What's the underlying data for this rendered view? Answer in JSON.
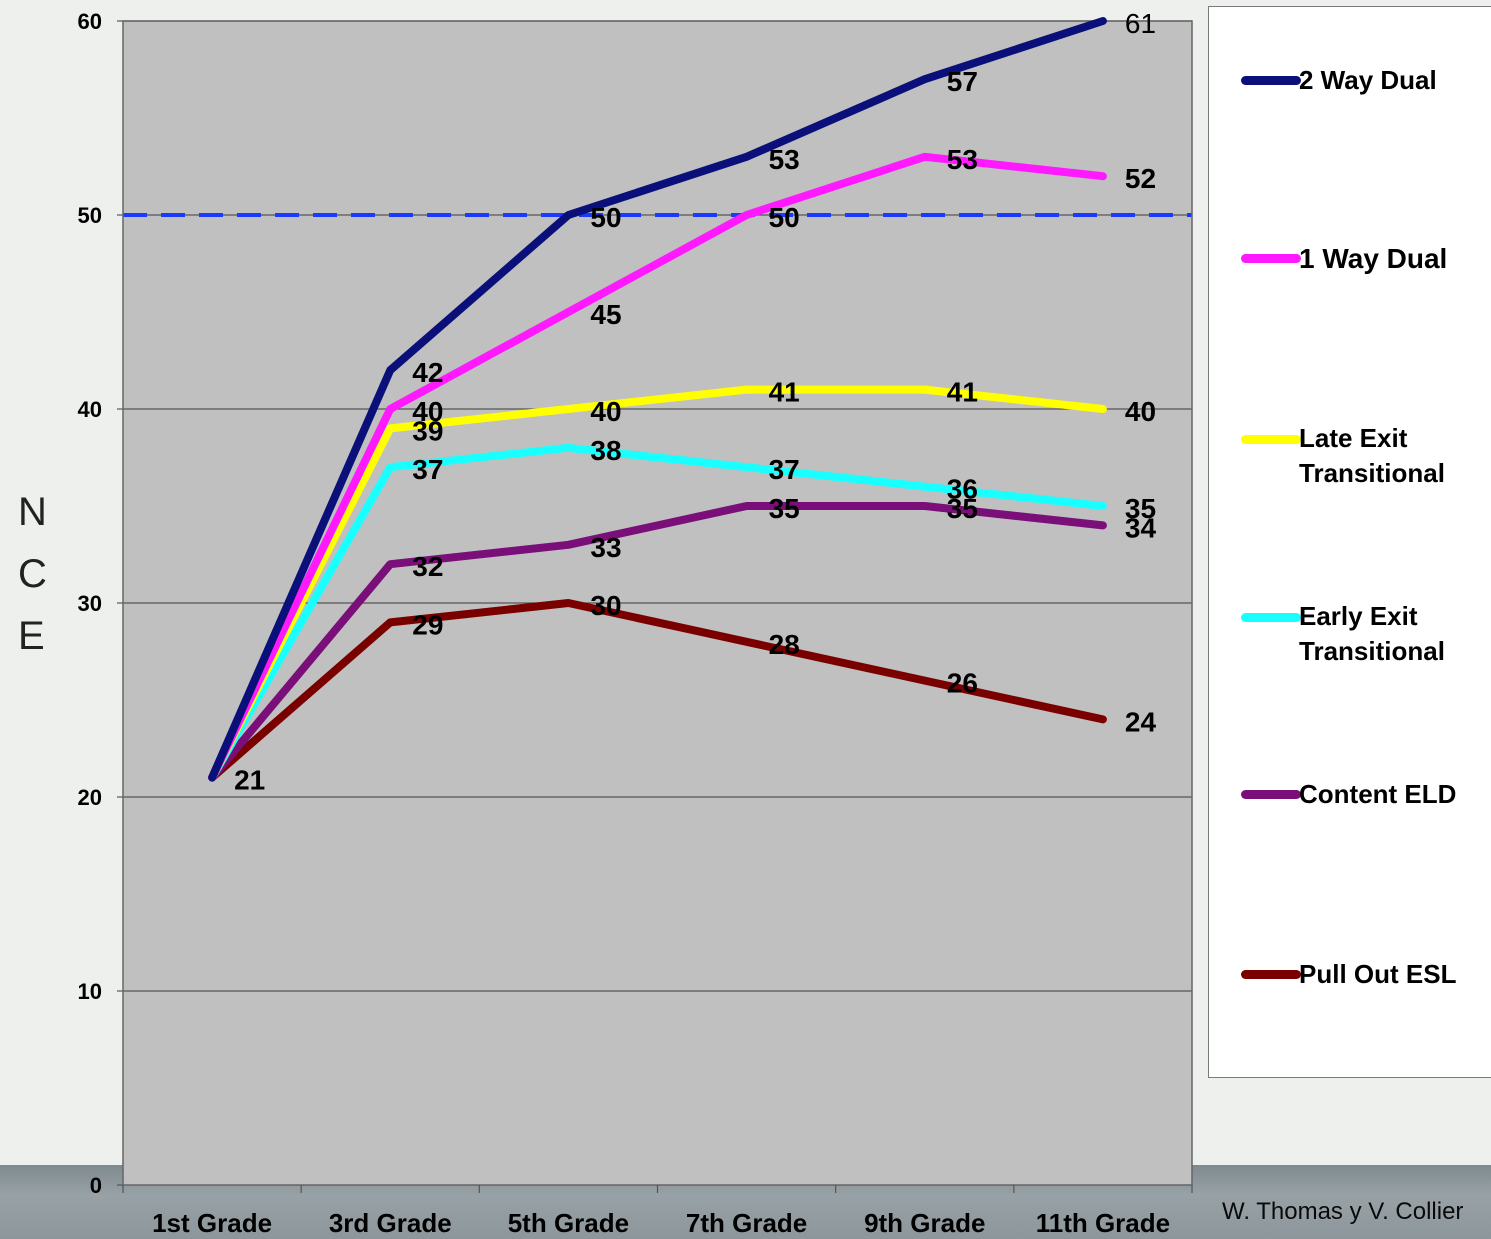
{
  "chart_data": {
    "type": "line",
    "categories": [
      "1st Grade",
      "3rd Grade",
      "5th Grade",
      "7th Grade",
      "9th Grade",
      "11th Grade"
    ],
    "ylabel": "NCE",
    "ylim": [
      0,
      60
    ],
    "yticks": [
      0,
      10,
      20,
      30,
      40,
      50,
      60
    ],
    "grid": true,
    "reference_line": {
      "value": 50,
      "color": "#1a3bff",
      "style": "dashed"
    },
    "legend_position": "right",
    "series": [
      {
        "name": "2 Way Dual",
        "color": "#0b0f7a",
        "values": [
          21,
          42,
          50,
          53,
          57,
          61
        ]
      },
      {
        "name": "1 Way Dual",
        "color": "#ff19ff",
        "values": [
          21,
          40,
          45,
          50,
          53,
          52
        ]
      },
      {
        "name": "Late Exit\nTransitional",
        "color": "#ffff00",
        "values": [
          21,
          39,
          40,
          41,
          41,
          40
        ]
      },
      {
        "name": "Early Exit\nTransitional",
        "color": "#19ffff",
        "values": [
          21,
          37,
          38,
          37,
          36,
          35
        ]
      },
      {
        "name": "Content ELD",
        "color": "#7a0f7a",
        "values": [
          21,
          32,
          33,
          35,
          35,
          34
        ]
      },
      {
        "name": "Pull Out ESL",
        "color": "#7a0000",
        "values": [
          21,
          29,
          30,
          28,
          26,
          24
        ]
      }
    ]
  },
  "ylabel_letters": [
    "N",
    "C",
    "E"
  ],
  "credit": "W. Thomas y V. Collier"
}
